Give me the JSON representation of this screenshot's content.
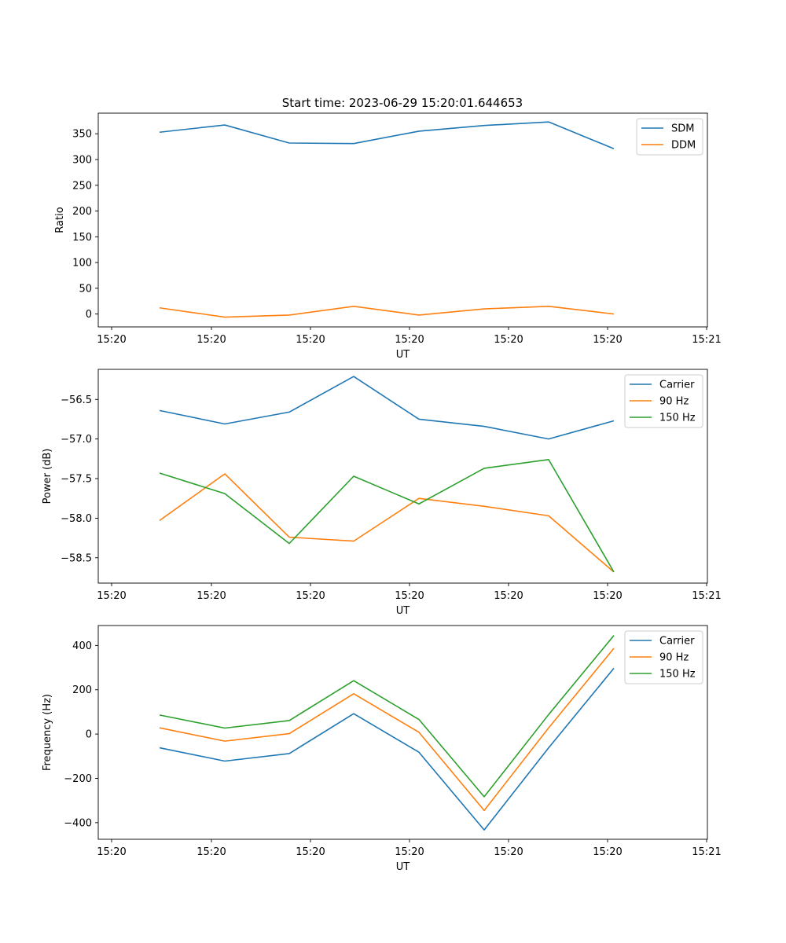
{
  "title": "Start time: 2023-06-29 15:20:01.644653",
  "chart_data": [
    {
      "type": "line",
      "ylabel": "Ratio",
      "xlabel": "UT",
      "ylim": [
        -25,
        390
      ],
      "yticks": [
        0,
        50,
        100,
        150,
        200,
        250,
        300,
        350
      ],
      "xtick_labels": [
        "15:20",
        "15:20",
        "15:20",
        "15:20",
        "15:20",
        "15:20",
        "15:21"
      ],
      "legend": "top-right",
      "series": [
        {
          "name": "SDM",
          "color": "#1f77b4",
          "values": [
            353,
            367,
            332,
            331,
            355,
            366,
            373,
            321
          ]
        },
        {
          "name": "DDM",
          "color": "#ff7f0e",
          "values": [
            12,
            -6,
            -2,
            15,
            -2,
            10,
            15,
            0
          ]
        }
      ]
    },
    {
      "type": "line",
      "ylabel": "Power (dB)",
      "xlabel": "UT",
      "ylim": [
        -58.82,
        -56.12
      ],
      "yticks": [
        -58.5,
        -58.0,
        -57.5,
        -57.0,
        -56.5
      ],
      "ytick_labels": [
        "−58.5",
        "−58.0",
        "−57.5",
        "−57.0",
        "−56.5"
      ],
      "xtick_labels": [
        "15:20",
        "15:20",
        "15:20",
        "15:20",
        "15:20",
        "15:20",
        "15:21"
      ],
      "legend": "top-right",
      "series": [
        {
          "name": "Carrier",
          "color": "#1f77b4",
          "values": [
            -56.64,
            -56.81,
            -56.66,
            -56.21,
            -56.75,
            -56.84,
            -57.0,
            -56.77
          ]
        },
        {
          "name": "90 Hz",
          "color": "#ff7f0e",
          "values": [
            -58.03,
            -57.44,
            -58.24,
            -58.29,
            -57.75,
            -57.85,
            -57.97,
            -58.68
          ]
        },
        {
          "name": "150 Hz",
          "color": "#2ca02c",
          "values": [
            -57.43,
            -57.69,
            -58.32,
            -57.47,
            -57.82,
            -57.37,
            -57.26,
            -58.68
          ]
        }
      ]
    },
    {
      "type": "line",
      "ylabel": "Frequency (Hz)",
      "xlabel": "UT",
      "ylim": [
        -475,
        490
      ],
      "yticks": [
        -400,
        -200,
        0,
        200,
        400
      ],
      "ytick_labels": [
        "−400",
        "−200",
        "0",
        "200",
        "400"
      ],
      "xtick_labels": [
        "15:20",
        "15:20",
        "15:20",
        "15:20",
        "15:20",
        "15:20",
        "15:21"
      ],
      "legend": "top-right",
      "series": [
        {
          "name": "Carrier",
          "color": "#1f77b4",
          "values": [
            -62,
            -122,
            -88,
            92,
            -82,
            -433,
            -62,
            297
          ]
        },
        {
          "name": "90 Hz",
          "color": "#ff7f0e",
          "values": [
            28,
            -32,
            2,
            182,
            8,
            -345,
            28,
            387
          ]
        },
        {
          "name": "150 Hz",
          "color": "#2ca02c",
          "values": [
            86,
            27,
            61,
            241,
            66,
            -283,
            88,
            445
          ]
        }
      ]
    }
  ]
}
